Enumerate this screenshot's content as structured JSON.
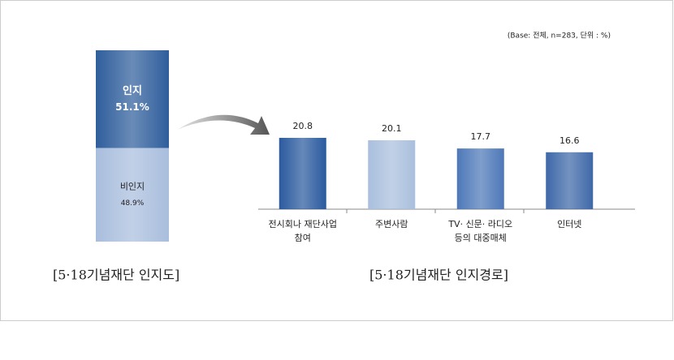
{
  "chart_data": [
    {
      "type": "stacked_bar",
      "title": "[5·18기념재단 인지도]",
      "series": [
        {
          "name": "인지",
          "color": "#2f5e9c",
          "values": [
            51.1
          ],
          "value_labels": [
            "51.1%"
          ]
        },
        {
          "name": "비인지",
          "color": "#a9bedd",
          "values": [
            48.9
          ],
          "value_labels": [
            "48.9%"
          ]
        }
      ]
    },
    {
      "type": "bar",
      "title": "[5·18기념재단 인지경로]",
      "note": "(Base: 전체, n=283, 단위 : %)",
      "categories": [
        "전시회나 재단사업\n참여",
        "주변사람",
        "TV· 신문· 라디오\n등의 대중매체",
        "인터넷"
      ],
      "values": [
        20.8,
        20.1,
        17.7,
        16.6
      ],
      "colors": [
        "#2a5a9e",
        "#a9bfdd",
        "#4d78b8",
        "#3f68a8"
      ]
    }
  ]
}
